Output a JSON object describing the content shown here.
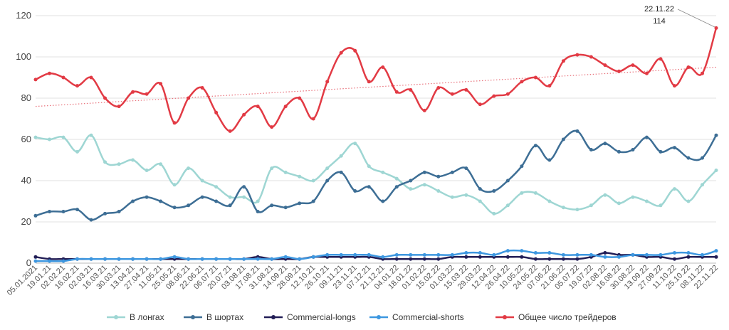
{
  "chart_data": {
    "type": "line",
    "title": "",
    "xlabel": "",
    "ylabel": "",
    "ylim": [
      0,
      120
    ],
    "yticks": [
      0,
      20,
      40,
      60,
      80,
      100,
      120
    ],
    "grid": "horizontal",
    "legend_position": "bottom",
    "categories": [
      "05.01.2021",
      "19.01.21",
      "02.02.21",
      "16.02.21",
      "02.03.21",
      "16.03.21",
      "30.03.21",
      "13.04.21",
      "27.04.21",
      "11.05.21",
      "25.05.21",
      "08.06.21",
      "22.06.21",
      "06.07.21",
      "20.07.21",
      "03.08.21",
      "17.08.21",
      "31.08.21",
      "14.09.21",
      "28.09.21",
      "12.10.21",
      "26.10.21",
      "09.11.21",
      "23.11.21",
      "07.12.21",
      "21.12.21",
      "04.01.22",
      "18.01.22",
      "01.02.22",
      "15.02.22",
      "01.03.22",
      "15.03.22",
      "29.03.22",
      "12.04.22",
      "26.04.22",
      "10.05.22",
      "24.05.22",
      "07.06.22",
      "21.06.22",
      "05.07.22",
      "19.07.22",
      "02.08.22",
      "16.08.22",
      "30.08.22",
      "13.09.22",
      "27.09.22",
      "11.10.22",
      "25.10.22",
      "08.11.22",
      "22.11.22"
    ],
    "series": [
      {
        "name": "В лонгах",
        "color": "#9ed6d3",
        "values": [
          61,
          60,
          61,
          54,
          62,
          49,
          48,
          50,
          45,
          48,
          38,
          46,
          40,
          37,
          32,
          32,
          30,
          46,
          44,
          42,
          40,
          46,
          52,
          58,
          47,
          44,
          41,
          36,
          38,
          35,
          32,
          33,
          30,
          24,
          28,
          34,
          34,
          30,
          27,
          26,
          28,
          33,
          29,
          32,
          30,
          28,
          36,
          30,
          38,
          45
        ]
      },
      {
        "name": "В шортах",
        "color": "#3d6e95",
        "values": [
          23,
          25,
          25,
          26,
          21,
          24,
          25,
          30,
          32,
          30,
          27,
          28,
          32,
          30,
          28,
          37,
          25,
          28,
          27,
          29,
          30,
          40,
          44,
          35,
          37,
          30,
          37,
          40,
          44,
          42,
          44,
          46,
          36,
          35,
          40,
          47,
          57,
          50,
          60,
          64,
          55,
          58,
          54,
          55,
          61,
          54,
          56,
          51,
          51,
          62
        ]
      },
      {
        "name": "Commercial-longs",
        "color": "#221e56",
        "values": [
          3,
          2,
          2,
          2,
          2,
          2,
          2,
          2,
          2,
          2,
          2,
          2,
          2,
          2,
          2,
          2,
          3,
          2,
          2,
          2,
          3,
          3,
          3,
          3,
          3,
          2,
          2,
          2,
          2,
          2,
          3,
          3,
          3,
          3,
          3,
          3,
          2,
          2,
          2,
          2,
          3,
          5,
          4,
          4,
          3,
          3,
          2,
          3,
          3,
          3
        ]
      },
      {
        "name": "Commercial-shorts",
        "color": "#3d97e0",
        "values": [
          1,
          1,
          1,
          2,
          2,
          2,
          2,
          2,
          2,
          2,
          3,
          2,
          2,
          2,
          2,
          2,
          2,
          2,
          3,
          2,
          3,
          4,
          4,
          4,
          4,
          3,
          4,
          4,
          4,
          4,
          4,
          5,
          5,
          4,
          6,
          6,
          5,
          5,
          4,
          4,
          4,
          3,
          3,
          4,
          4,
          4,
          5,
          5,
          4,
          6
        ]
      },
      {
        "name": "Общее число трейдеров",
        "color": "#e23a44",
        "values": [
          89,
          92,
          90,
          86,
          90,
          80,
          76,
          83,
          82,
          87,
          68,
          80,
          85,
          73,
          64,
          72,
          76,
          66,
          76,
          80,
          70,
          88,
          102,
          103,
          88,
          95,
          83,
          84,
          74,
          85,
          82,
          84,
          77,
          81,
          82,
          88,
          90,
          86,
          98,
          101,
          100,
          96,
          93,
          96,
          92,
          99,
          86,
          95,
          92,
          114
        ]
      }
    ],
    "trendline": {
      "series": "Общее число трейдеров",
      "style": "dotted",
      "start": 76,
      "end": 95
    },
    "annotation": {
      "date": "22.11.22",
      "value": "114"
    }
  }
}
